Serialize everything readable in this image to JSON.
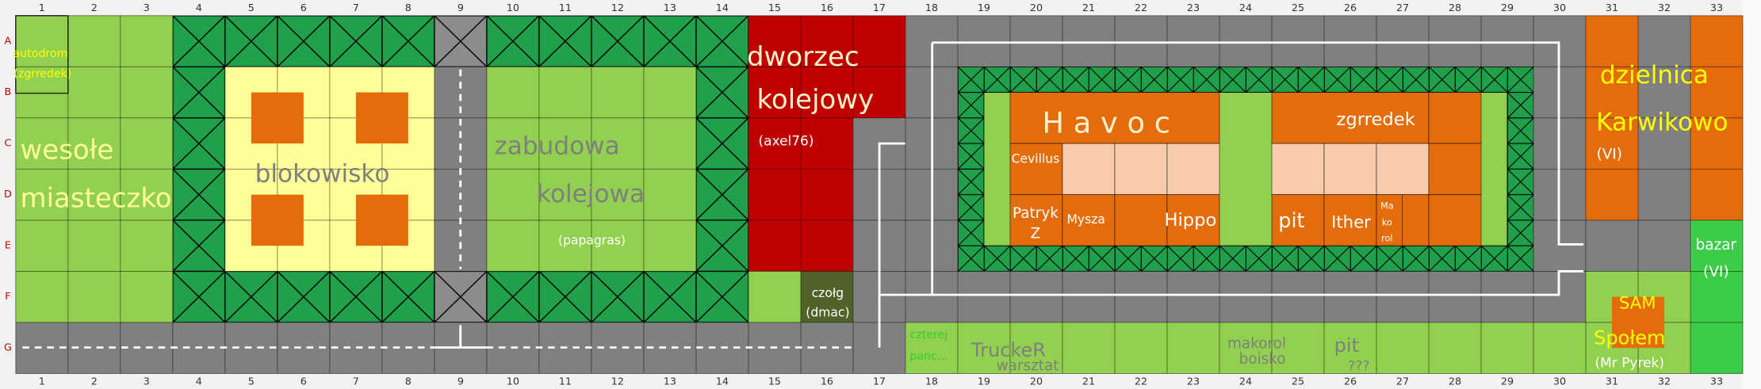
{
  "columns": [
    1,
    2,
    3,
    4,
    5,
    6,
    7,
    8,
    9,
    10,
    11,
    12,
    13,
    14,
    15,
    16,
    17,
    18,
    19,
    20,
    21,
    22,
    23,
    24,
    25,
    26,
    27,
    28,
    29,
    30,
    31,
    32,
    33
  ],
  "rows": [
    "A",
    "B",
    "C",
    "D",
    "E",
    "F",
    "G"
  ],
  "labels": [
    [
      "autodrom",
      "(zgrredek)"
    ],
    [
      "wesołe",
      "miasteczko"
    ],
    [
      "blokowisko"
    ],
    [
      "zabudowa",
      "kolejowa"
    ],
    [
      "(papagras)"
    ],
    [
      "dworzec",
      "kolejowy"
    ],
    [
      "(axel76)"
    ],
    [
      "czołg",
      "(dmac)"
    ],
    [
      "H a v o c"
    ],
    [
      "zgrredek"
    ],
    [
      "Cevillus"
    ],
    [
      "Patryk",
      "Z"
    ],
    [
      "Mysza"
    ],
    [
      "Hippo"
    ],
    [
      "pit"
    ],
    [
      "Ither"
    ],
    [
      "Ma",
      "ko",
      "rol"
    ],
    [
      "dzielnica",
      "Karwikowo"
    ],
    [
      "(VI)"
    ],
    [
      "bazar",
      "(VI)"
    ],
    [
      "SAM"
    ],
    [
      "Społem"
    ],
    [
      "(Mr Pyrek)"
    ],
    [
      "czterej",
      "panc..."
    ],
    [
      "TruckeR",
      "warsztat"
    ],
    [
      "makorol",
      "boisko"
    ],
    [
      "pit",
      "???"
    ]
  ]
}
